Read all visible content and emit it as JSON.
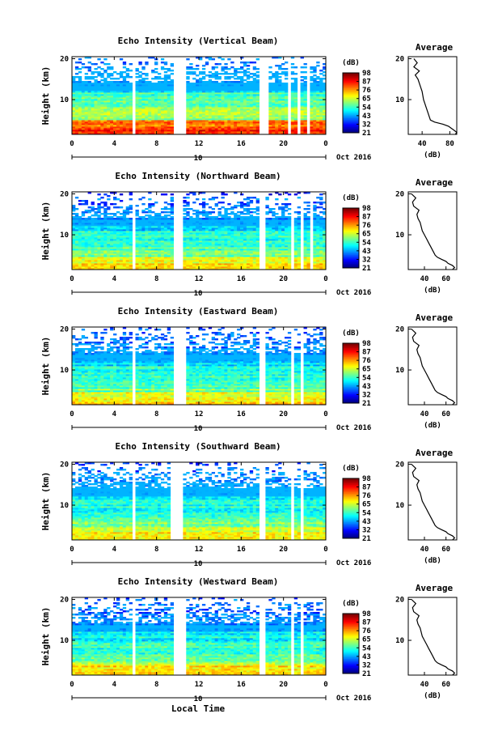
{
  "figure": {
    "date_label": "Oct 2016",
    "xlabel": "Local Time",
    "ylabel": "Height (km)",
    "cbar_unit": "(dB)",
    "avg_title": "Average",
    "avg_xlabel": "(dB)"
  },
  "chart_data": [
    {
      "type": "heatmap",
      "title": "Echo Intensity (Vertical Beam)",
      "x_ticks": [
        "0",
        "4",
        "8",
        "12",
        "16",
        "20",
        "0"
      ],
      "x_range_hours": [
        0,
        24
      ],
      "center_tick": "10",
      "y_ticks": [
        "10",
        "20"
      ],
      "y_range_km": [
        1.5,
        20.5
      ],
      "colorbar_ticks": [
        "21",
        "32",
        "43",
        "54",
        "65",
        "76",
        "87",
        "98"
      ],
      "gaps_hours": [
        [
          5.7,
          5.9
        ],
        [
          9.7,
          10.7
        ],
        [
          17.8,
          18.6
        ],
        [
          20.5,
          20.8
        ],
        [
          21.4,
          21.7
        ],
        [
          22.2,
          22.5
        ]
      ],
      "average_profile": {
        "x_ticks": [
          "40",
          "80"
        ],
        "x_range_db": [
          20,
          90
        ],
        "y_ticks": [
          "10",
          "20"
        ],
        "height_km": [
          1.5,
          2,
          2.5,
          3,
          3.5,
          4,
          4.5,
          5,
          6,
          7,
          8,
          9,
          10,
          11,
          12,
          13,
          14,
          15,
          16,
          17,
          18,
          19,
          20
        ],
        "value_db": [
          88,
          90,
          86,
          82,
          78,
          70,
          58,
          52,
          50,
          48,
          46,
          44,
          42,
          41,
          40,
          38,
          36,
          34,
          30,
          36,
          28,
          33,
          28
        ]
      }
    },
    {
      "type": "heatmap",
      "title": "Echo Intensity (Northward Beam)",
      "x_ticks": [
        "0",
        "4",
        "8",
        "12",
        "16",
        "20",
        "0"
      ],
      "x_range_hours": [
        0,
        24
      ],
      "center_tick": "10",
      "y_ticks": [
        "10",
        "20"
      ],
      "y_range_km": [
        1.5,
        20.5
      ],
      "colorbar_ticks": [
        "21",
        "32",
        "43",
        "54",
        "65",
        "76",
        "87",
        "98"
      ],
      "gaps_hours": [
        [
          5.7,
          5.9
        ],
        [
          9.6,
          10.6
        ],
        [
          17.6,
          18.4
        ],
        [
          20.8,
          21.1
        ],
        [
          21.6,
          21.8
        ],
        [
          22.4,
          22.7
        ]
      ],
      "average_profile": {
        "x_ticks": [
          "40",
          "60"
        ],
        "x_range_db": [
          25,
          70
        ],
        "y_ticks": [
          "10",
          "20"
        ],
        "height_km": [
          1.5,
          2,
          2.5,
          3,
          3.5,
          4,
          4.5,
          5,
          6,
          7,
          8,
          9,
          10,
          11,
          12,
          13,
          14,
          15,
          16,
          17,
          18,
          19,
          20
        ],
        "value_db": [
          66,
          68,
          66,
          62,
          60,
          56,
          52,
          50,
          48,
          46,
          44,
          42,
          40,
          38,
          37,
          36,
          34,
          33,
          35,
          30,
          29,
          32,
          28
        ]
      }
    },
    {
      "type": "heatmap",
      "title": "Echo Intensity (Eastward Beam)",
      "x_ticks": [
        "0",
        "4",
        "8",
        "12",
        "16",
        "20",
        "0"
      ],
      "x_range_hours": [
        0,
        24
      ],
      "center_tick": "10",
      "y_ticks": [
        "10",
        "20"
      ],
      "y_range_km": [
        1.5,
        20.5
      ],
      "colorbar_ticks": [
        "21",
        "32",
        "43",
        "54",
        "65",
        "76",
        "87",
        "98"
      ],
      "gaps_hours": [
        [
          5.7,
          5.9
        ],
        [
          9.7,
          10.7
        ],
        [
          17.6,
          18.4
        ],
        [
          20.8,
          21.0
        ],
        [
          21.6,
          21.8
        ],
        [
          22.4,
          22.6
        ]
      ],
      "average_profile": {
        "x_ticks": [
          "40",
          "60"
        ],
        "x_range_db": [
          25,
          70
        ],
        "y_ticks": [
          "10",
          "20"
        ],
        "height_km": [
          1.5,
          2,
          2.5,
          3,
          3.5,
          4,
          4.5,
          5,
          6,
          7,
          8,
          9,
          10,
          11,
          12,
          13,
          14,
          15,
          16,
          17,
          18,
          19,
          20
        ],
        "value_db": [
          66,
          68,
          66,
          62,
          60,
          56,
          52,
          50,
          48,
          46,
          44,
          42,
          40,
          38,
          37,
          36,
          34,
          33,
          35,
          30,
          29,
          32,
          28
        ]
      }
    },
    {
      "type": "heatmap",
      "title": "Echo Intensity (Southward Beam)",
      "x_ticks": [
        "0",
        "4",
        "8",
        "12",
        "16",
        "20",
        "0"
      ],
      "x_range_hours": [
        0,
        24
      ],
      "center_tick": "10",
      "y_ticks": [
        "10",
        "20"
      ],
      "y_range_km": [
        1.5,
        20.5
      ],
      "colorbar_ticks": [
        "21",
        "32",
        "43",
        "54",
        "65",
        "76",
        "87",
        "98"
      ],
      "gaps_hours": [
        [
          3.8,
          4.0
        ],
        [
          5.7,
          5.9
        ],
        [
          9.4,
          10.6
        ],
        [
          17.6,
          18.4
        ],
        [
          20.8,
          21.0
        ],
        [
          21.5,
          21.8
        ],
        [
          22.4,
          22.6
        ]
      ],
      "average_profile": {
        "x_ticks": [
          "40",
          "60"
        ],
        "x_range_db": [
          25,
          70
        ],
        "y_ticks": [
          "10",
          "20"
        ],
        "height_km": [
          1.5,
          2,
          2.5,
          3,
          3.5,
          4,
          4.5,
          5,
          6,
          7,
          8,
          9,
          10,
          11,
          12,
          13,
          14,
          15,
          16,
          17,
          18,
          19,
          20
        ],
        "value_db": [
          66,
          68,
          66,
          62,
          60,
          56,
          52,
          50,
          48,
          46,
          44,
          42,
          40,
          38,
          37,
          36,
          34,
          33,
          35,
          30,
          29,
          32,
          28
        ]
      }
    },
    {
      "type": "heatmap",
      "title": "Echo Intensity (Westward Beam)",
      "x_ticks": [
        "0",
        "4",
        "8",
        "12",
        "16",
        "20",
        "0"
      ],
      "x_range_hours": [
        0,
        24
      ],
      "center_tick": "10",
      "y_ticks": [
        "10",
        "20"
      ],
      "y_range_km": [
        1.5,
        20.5
      ],
      "colorbar_ticks": [
        "21",
        "32",
        "43",
        "54",
        "65",
        "76",
        "87",
        "98"
      ],
      "gaps_hours": [
        [
          5.7,
          5.9
        ],
        [
          9.7,
          10.7
        ],
        [
          17.6,
          18.4
        ],
        [
          20.6,
          20.9
        ],
        [
          21.5,
          21.8
        ]
      ],
      "average_profile": {
        "x_ticks": [
          "40",
          "60"
        ],
        "x_range_db": [
          25,
          70
        ],
        "y_ticks": [
          "10",
          "20"
        ],
        "height_km": [
          1.5,
          2,
          2.5,
          3,
          3.5,
          4,
          4.5,
          5,
          6,
          7,
          8,
          9,
          10,
          11,
          12,
          13,
          14,
          15,
          16,
          17,
          18,
          19,
          20
        ],
        "value_db": [
          66,
          68,
          66,
          62,
          60,
          56,
          52,
          50,
          48,
          46,
          44,
          42,
          40,
          38,
          37,
          36,
          34,
          33,
          35,
          30,
          29,
          32,
          28
        ]
      }
    }
  ]
}
